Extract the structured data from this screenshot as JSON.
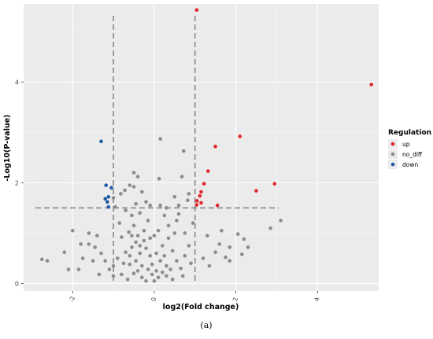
{
  "chart_data": {
    "type": "scatter",
    "xlabel": "log2(Fold change)",
    "ylabel": "-Log10(P-value)",
    "xlim": [
      -3.2,
      5.5
    ],
    "ylim": [
      -0.15,
      5.55
    ],
    "x_ticks": [
      -2,
      0,
      2,
      4
    ],
    "y_ticks": [
      0,
      2,
      4
    ],
    "x_tick_labels": [
      "-2",
      "0",
      "2",
      "4"
    ],
    "y_tick_labels": [
      "0",
      "2",
      "4"
    ],
    "grid": true,
    "thresholds": {
      "fold_change": [
        -1,
        1
      ],
      "p_value": 1.5
    },
    "legend": {
      "title": "Regulation",
      "placement": "right",
      "entries": [
        {
          "label": "up",
          "color": "#e0262b"
        },
        {
          "label": "no_diff",
          "color": "#8c8c8c"
        },
        {
          "label": "down",
          "color": "#1f5aa6"
        }
      ]
    },
    "series": [
      {
        "name": "up",
        "color": "#e0262b",
        "points": [
          [
            1.04,
            5.43
          ],
          [
            5.32,
            3.95
          ],
          [
            2.1,
            2.92
          ],
          [
            1.5,
            2.72
          ],
          [
            1.32,
            2.23
          ],
          [
            2.95,
            1.98
          ],
          [
            1.22,
            1.98
          ],
          [
            1.15,
            1.82
          ],
          [
            2.5,
            1.84
          ],
          [
            1.12,
            1.74
          ],
          [
            1.05,
            1.64
          ],
          [
            1.15,
            1.6
          ],
          [
            1.55,
            1.55
          ],
          [
            1.04,
            1.56
          ]
        ]
      },
      {
        "name": "down",
        "color": "#1f5aa6",
        "points": [
          [
            -1.3,
            2.82
          ],
          [
            -1.18,
            1.95
          ],
          [
            -1.05,
            1.9
          ],
          [
            -1.12,
            1.72
          ],
          [
            -1.2,
            1.68
          ],
          [
            -1.15,
            1.62
          ],
          [
            -1.12,
            1.52
          ]
        ]
      },
      {
        "name": "no_diff",
        "color": "#8c8c8c",
        "points": [
          [
            0.15,
            2.87
          ],
          [
            0.72,
            2.63
          ],
          [
            0.68,
            2.12
          ],
          [
            0.82,
            1.65
          ],
          [
            0.12,
            2.08
          ],
          [
            -0.5,
            2.2
          ],
          [
            -0.4,
            2.12
          ],
          [
            -0.5,
            1.92
          ],
          [
            -0.6,
            1.95
          ],
          [
            -0.72,
            1.85
          ],
          [
            -0.82,
            1.78
          ],
          [
            -0.3,
            1.82
          ],
          [
            -0.2,
            1.62
          ],
          [
            0.5,
            1.72
          ],
          [
            0.85,
            1.78
          ],
          [
            0.6,
            1.55
          ],
          [
            -0.45,
            1.58
          ],
          [
            0.3,
            1.5
          ],
          [
            -0.1,
            1.55
          ],
          [
            -1.0,
            1.7
          ],
          [
            -0.95,
            1.52
          ],
          [
            3.1,
            1.25
          ],
          [
            2.85,
            1.1
          ],
          [
            2.05,
            0.98
          ],
          [
            2.2,
            0.88
          ],
          [
            1.65,
            1.05
          ],
          [
            1.85,
            0.72
          ],
          [
            2.3,
            0.72
          ],
          [
            2.15,
            0.58
          ],
          [
            1.3,
            0.95
          ],
          [
            1.6,
            0.78
          ],
          [
            1.5,
            0.62
          ],
          [
            1.2,
            0.5
          ],
          [
            1.75,
            0.52
          ],
          [
            1.85,
            0.45
          ],
          [
            1.35,
            0.35
          ],
          [
            -2.0,
            1.05
          ],
          [
            -1.6,
            1.0
          ],
          [
            -1.4,
            0.95
          ],
          [
            -1.6,
            0.78
          ],
          [
            -1.8,
            0.78
          ],
          [
            -1.45,
            0.72
          ],
          [
            -1.3,
            0.6
          ],
          [
            -1.75,
            0.5
          ],
          [
            -1.5,
            0.45
          ],
          [
            -1.2,
            0.45
          ],
          [
            -2.2,
            0.62
          ],
          [
            -2.75,
            0.48
          ],
          [
            -2.62,
            0.45
          ],
          [
            -1.85,
            0.28
          ],
          [
            -2.1,
            0.28
          ],
          [
            -1.1,
            0.28
          ],
          [
            -1.35,
            0.18
          ],
          [
            -1.0,
            0.15
          ],
          [
            -0.55,
            1.35
          ],
          [
            -0.35,
            1.4
          ],
          [
            -0.5,
            1.15
          ],
          [
            -0.62,
            1.02
          ],
          [
            -0.8,
            0.92
          ],
          [
            -0.4,
            0.95
          ],
          [
            -0.45,
            0.82
          ],
          [
            -0.25,
            0.85
          ],
          [
            -0.55,
            0.72
          ],
          [
            -0.7,
            0.62
          ],
          [
            -0.35,
            0.6
          ],
          [
            -0.2,
            0.7
          ],
          [
            -0.1,
            0.55
          ],
          [
            -0.45,
            0.45
          ],
          [
            -0.3,
            0.35
          ],
          [
            -0.6,
            0.38
          ],
          [
            -0.15,
            0.28
          ],
          [
            -0.05,
            0.18
          ],
          [
            -0.3,
            0.12
          ],
          [
            -0.5,
            0.2
          ],
          [
            -0.8,
            0.18
          ],
          [
            -0.65,
            0.08
          ],
          [
            -0.2,
            0.05
          ],
          [
            0.0,
            0.05
          ],
          [
            0.1,
            0.12
          ],
          [
            0.2,
            0.22
          ],
          [
            0.3,
            0.35
          ],
          [
            0.15,
            0.45
          ],
          [
            0.05,
            0.6
          ],
          [
            0.2,
            0.75
          ],
          [
            0.35,
            0.9
          ],
          [
            0.1,
            1.05
          ],
          [
            0.35,
            1.15
          ],
          [
            0.55,
            1.25
          ],
          [
            0.25,
            1.35
          ],
          [
            0.45,
            0.65
          ],
          [
            0.55,
            0.45
          ],
          [
            0.65,
            0.3
          ],
          [
            0.75,
            0.55
          ],
          [
            0.85,
            0.75
          ],
          [
            0.9,
            0.4
          ],
          [
            0.7,
            0.15
          ],
          [
            0.45,
            0.08
          ],
          [
            0.4,
            0.28
          ],
          [
            -0.25,
            1.05
          ],
          [
            0.0,
            0.95
          ],
          [
            -0.05,
            0.38
          ],
          [
            -0.9,
            0.5
          ],
          [
            -0.75,
            0.4
          ],
          [
            -1.0,
            0.35
          ],
          [
            0.95,
            1.2
          ],
          [
            0.75,
            1.0
          ],
          [
            -0.85,
            1.2
          ],
          [
            -0.7,
            1.45
          ],
          [
            0.6,
            1.38
          ],
          [
            0.15,
            1.55
          ],
          [
            -0.15,
            1.25
          ],
          [
            0.25,
            0.55
          ],
          [
            -0.35,
            0.75
          ],
          [
            -0.6,
            0.55
          ],
          [
            -0.1,
            0.9
          ],
          [
            0.05,
            0.25
          ],
          [
            -0.4,
            0.25
          ],
          [
            0.3,
            0.15
          ],
          [
            -0.55,
            0.95
          ],
          [
            0.5,
            1.0
          ]
        ]
      }
    ]
  },
  "caption": "(a)"
}
